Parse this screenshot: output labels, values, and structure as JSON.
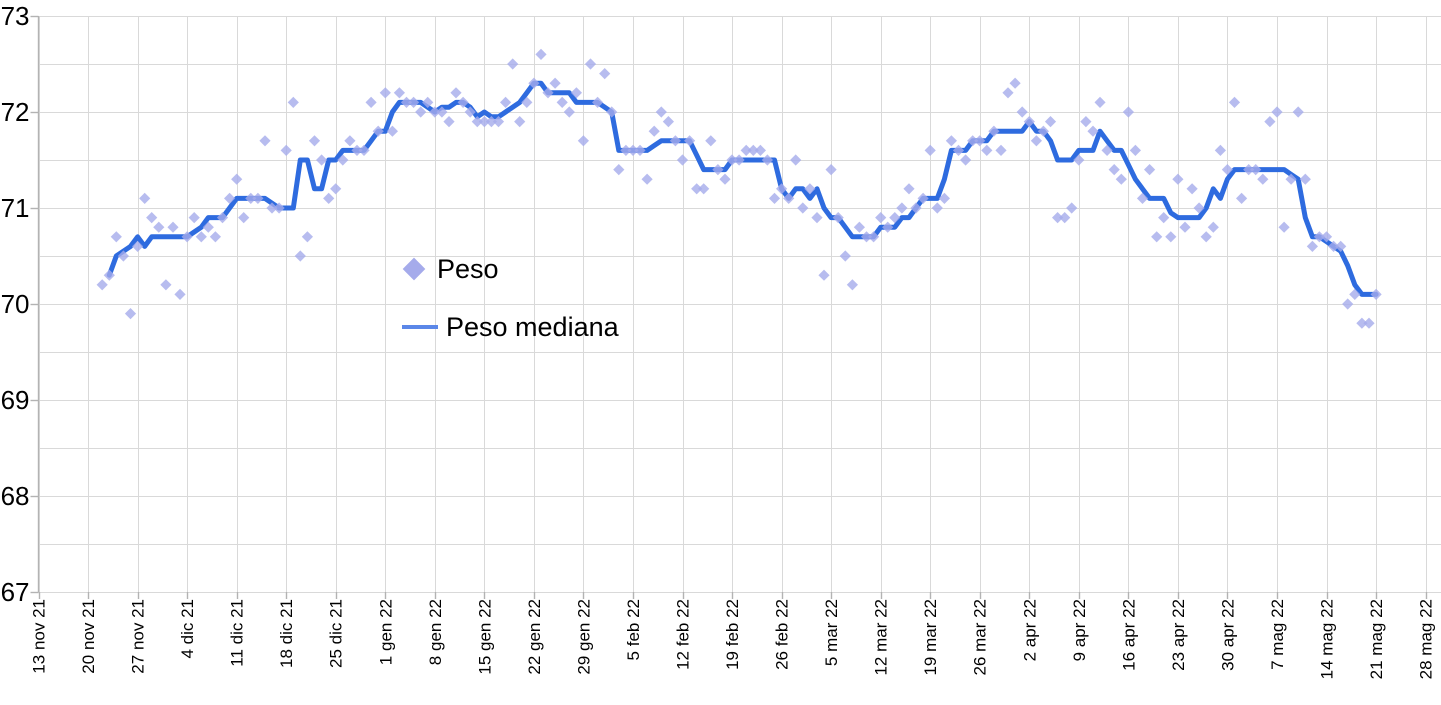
{
  "chart_data": {
    "type": "scatter",
    "title": "",
    "legend_position": "center",
    "grid": true,
    "x_axis": {
      "start_label": "13 nov 21",
      "tick_interval_days": 7,
      "tick_labels": [
        "13 nov 21",
        "20 nov 21",
        "27 nov 21",
        "4 dic 21",
        "11 dic 21",
        "18 dic 21",
        "25 dic 21",
        "1 gen 22",
        "8 gen 22",
        "15 gen 22",
        "22 gen 22",
        "29 gen 22",
        "5 feb 22",
        "12 feb 22",
        "19 feb 22",
        "26 feb 22",
        "5 mar 22",
        "12 mar 22",
        "19 mar 22",
        "26 mar 22",
        "2 apr 22",
        "9 apr 22",
        "16 apr 22",
        "23 apr 22",
        "30 apr 22",
        "7 mag 22",
        "14 mag 22",
        "21 mag 22",
        "28 mag 22"
      ]
    },
    "y_axis": {
      "min": 67,
      "max": 73,
      "label_step": 1,
      "grid_step": 0.5,
      "tick_labels": [
        "67",
        "68",
        "69",
        "70",
        "71",
        "72",
        "73"
      ]
    },
    "series": [
      {
        "name": "Peso",
        "type": "scatter",
        "marker": "diamond",
        "color": "#a5abeb",
        "start_offset_days": 9,
        "values": [
          70.2,
          70.3,
          70.7,
          70.5,
          69.9,
          70.6,
          71.1,
          70.9,
          70.8,
          70.2,
          70.8,
          70.1,
          70.7,
          70.9,
          70.7,
          70.8,
          70.7,
          70.9,
          71.1,
          71.3,
          70.9,
          71.1,
          71.1,
          71.7,
          71.0,
          71.0,
          71.6,
          72.1,
          70.5,
          70.7,
          71.7,
          71.5,
          71.1,
          71.2,
          71.5,
          71.7,
          71.6,
          71.6,
          72.1,
          71.8,
          72.2,
          71.8,
          72.2,
          72.1,
          72.1,
          72.0,
          72.1,
          72.0,
          72.0,
          71.9,
          72.2,
          72.1,
          72.0,
          71.9,
          71.9,
          71.9,
          71.9,
          72.1,
          72.5,
          71.9,
          72.1,
          72.3,
          72.6,
          72.2,
          72.3,
          72.1,
          72.0,
          72.2,
          71.7,
          72.5,
          72.1,
          72.4,
          72.0,
          71.4,
          71.6,
          71.6,
          71.6,
          71.3,
          71.8,
          72.0,
          71.9,
          71.7,
          71.5,
          71.7,
          71.2,
          71.2,
          71.7,
          71.4,
          71.3,
          71.5,
          71.5,
          71.6,
          71.6,
          71.6,
          71.5,
          71.1,
          71.2,
          71.1,
          71.5,
          71.0,
          71.2,
          70.9,
          70.3,
          71.4,
          70.9,
          70.5,
          70.2,
          70.8,
          70.7,
          70.7,
          70.9,
          70.8,
          70.9,
          71.0,
          71.2,
          71.0,
          71.1,
          71.6,
          71.0,
          71.1,
          71.7,
          71.6,
          71.5,
          71.7,
          71.7,
          71.6,
          71.8,
          71.6,
          72.2,
          72.3,
          72.0,
          71.9,
          71.7,
          71.8,
          71.9,
          70.9,
          70.9,
          71.0,
          71.5,
          71.9,
          71.8,
          72.1,
          71.6,
          71.4,
          71.3,
          72.0,
          71.6,
          71.1,
          71.4,
          70.7,
          70.9,
          70.7,
          71.3,
          70.8,
          71.2,
          71.0,
          70.7,
          70.8,
          71.6,
          71.4,
          72.1,
          71.1,
          71.4,
          71.4,
          71.3,
          71.9,
          72.0,
          70.8,
          71.3,
          72.0,
          71.3,
          70.6,
          70.7,
          70.7,
          70.6,
          70.6,
          70.0,
          70.1,
          69.8,
          69.8,
          70.1
        ]
      },
      {
        "name": "Peso mediana",
        "type": "line",
        "color": "#2e6bdf",
        "legend_swatch_color": "#5b87e8",
        "start_offset_days": 10,
        "values": [
          70.3,
          70.5,
          70.55,
          70.6,
          70.7,
          70.6,
          70.7,
          70.7,
          70.7,
          70.7,
          70.7,
          70.7,
          70.75,
          70.8,
          70.9,
          70.9,
          70.9,
          71.0,
          71.1,
          71.1,
          71.1,
          71.1,
          71.1,
          71.05,
          71.0,
          71.0,
          71.0,
          71.5,
          71.5,
          71.2,
          71.2,
          71.5,
          71.5,
          71.6,
          71.6,
          71.6,
          71.6,
          71.7,
          71.8,
          71.8,
          72.0,
          72.1,
          72.1,
          72.1,
          72.1,
          72.05,
          72.0,
          72.05,
          72.05,
          72.1,
          72.1,
          72.05,
          71.95,
          72.0,
          71.95,
          71.95,
          72.0,
          72.05,
          72.1,
          72.2,
          72.3,
          72.3,
          72.2,
          72.2,
          72.2,
          72.2,
          72.1,
          72.1,
          72.1,
          72.1,
          72.05,
          72.0,
          71.6,
          71.6,
          71.6,
          71.6,
          71.6,
          71.65,
          71.7,
          71.7,
          71.7,
          71.7,
          71.7,
          71.55,
          71.4,
          71.4,
          71.4,
          71.4,
          71.5,
          71.5,
          71.5,
          71.5,
          71.5,
          71.5,
          71.5,
          71.2,
          71.1,
          71.2,
          71.2,
          71.1,
          71.2,
          71.0,
          70.9,
          70.9,
          70.8,
          70.7,
          70.7,
          70.7,
          70.7,
          70.8,
          70.8,
          70.8,
          70.9,
          70.9,
          71.0,
          71.1,
          71.1,
          71.1,
          71.3,
          71.6,
          71.6,
          71.6,
          71.7,
          71.7,
          71.7,
          71.8,
          71.8,
          71.8,
          71.8,
          71.8,
          71.9,
          71.8,
          71.8,
          71.7,
          71.5,
          71.5,
          71.5,
          71.6,
          71.6,
          71.6,
          71.8,
          71.7,
          71.6,
          71.6,
          71.45,
          71.3,
          71.2,
          71.1,
          71.1,
          71.1,
          70.95,
          70.9,
          70.9,
          70.9,
          70.9,
          71.0,
          71.2,
          71.1,
          71.3,
          71.4,
          71.4,
          71.4,
          71.4,
          71.4,
          71.4,
          71.4,
          71.4,
          71.35,
          71.3,
          70.9,
          70.7,
          70.7,
          70.65,
          70.6,
          70.55,
          70.4,
          70.2,
          70.1,
          70.1,
          70.1
        ]
      }
    ]
  },
  "legend": {
    "items": [
      {
        "label": "Peso",
        "marker": "diamond"
      },
      {
        "label": "Peso mediana",
        "marker": "line"
      }
    ]
  },
  "colors": {
    "background": "#ffffff",
    "grid": "#d9d9d9",
    "axis": "#b3b3b3",
    "text": "#000000",
    "scatter": "#a5abeb",
    "median_line": "#2e6bdf",
    "legend_line_swatch": "#5b87e8"
  }
}
